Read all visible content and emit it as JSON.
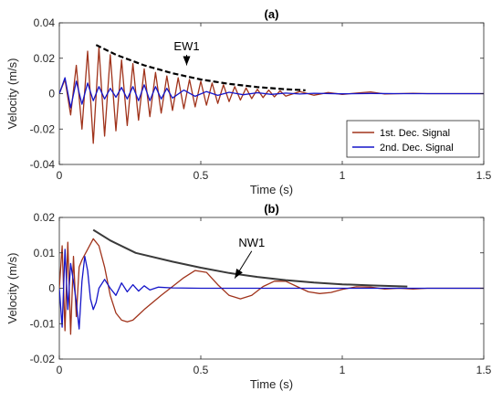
{
  "colors": {
    "series1": "#a0331b",
    "series2": "#1515c8",
    "envelope_a": "#000000",
    "envelope_b": "#3a3a3a",
    "axis": "#262626"
  },
  "chart_data": [
    {
      "type": "line",
      "title": "(a)",
      "xlabel": "Time (s)",
      "ylabel": "Velocity (m/s)",
      "xlim": [
        0,
        1.5
      ],
      "ylim": [
        -0.04,
        0.04
      ],
      "xticks": [
        0,
        0.5,
        1,
        1.5
      ],
      "xtick_labels": [
        "0",
        "0.5",
        "1",
        "1.5"
      ],
      "yticks": [
        -0.04,
        -0.02,
        0,
        0.02,
        0.04
      ],
      "ytick_labels": [
        "-0.04",
        "-0.02",
        "0",
        "0.02",
        "0.04"
      ],
      "legend_position": "bottom-right",
      "annotation": {
        "text": "EW1",
        "x": 0.45,
        "y": 0.016,
        "text_x": 0.45,
        "text_y": 0.0245
      },
      "series": [
        {
          "name": "1st. Dec. Signal",
          "style": "solid",
          "color": "#a0331b",
          "x": [
            0,
            0.02,
            0.04,
            0.06,
            0.08,
            0.1,
            0.12,
            0.14,
            0.16,
            0.18,
            0.2,
            0.22,
            0.24,
            0.26,
            0.28,
            0.3,
            0.32,
            0.34,
            0.36,
            0.38,
            0.4,
            0.42,
            0.44,
            0.46,
            0.48,
            0.5,
            0.52,
            0.54,
            0.56,
            0.58,
            0.6,
            0.62,
            0.64,
            0.66,
            0.68,
            0.7,
            0.72,
            0.74,
            0.76,
            0.78,
            0.8,
            0.85,
            0.9,
            0.95,
            1.0,
            1.05,
            1.1,
            1.15,
            1.2,
            1.25,
            1.3,
            1.35,
            1.4,
            1.45,
            1.5
          ],
          "y": [
            0,
            0.008,
            -0.012,
            0.016,
            -0.02,
            0.024,
            -0.028,
            0.026,
            -0.024,
            0.022,
            -0.021,
            0.019,
            -0.018,
            0.017,
            -0.015,
            0.014,
            -0.013,
            0.012,
            -0.011,
            0.01,
            -0.0095,
            0.009,
            -0.0085,
            0.008,
            -0.0075,
            0.007,
            -0.0065,
            0.006,
            -0.0055,
            0.005,
            -0.0045,
            0.004,
            -0.0036,
            0.0032,
            -0.0028,
            0.0025,
            -0.0022,
            0.002,
            -0.0018,
            0.0016,
            -0.0014,
            0.0012,
            -0.0009,
            0.0006,
            -0.0004,
            0.0003,
            0.001,
            -0.0002,
            0.0,
            0.0002,
            0.0,
            0.0,
            0.0,
            0.0,
            0.0
          ]
        },
        {
          "name": "2nd. Dec. Signal",
          "style": "solid",
          "color": "#1515c8",
          "x": [
            0,
            0.02,
            0.04,
            0.06,
            0.08,
            0.1,
            0.12,
            0.14,
            0.16,
            0.18,
            0.2,
            0.22,
            0.24,
            0.26,
            0.28,
            0.3,
            0.32,
            0.34,
            0.36,
            0.38,
            0.4,
            0.44,
            0.48,
            0.52,
            0.56,
            0.6,
            0.65,
            0.7,
            0.75,
            0.8,
            0.85,
            0.9,
            1.0,
            1.1,
            1.2,
            1.3,
            1.4,
            1.5
          ],
          "y": [
            0.0,
            0.009,
            -0.008,
            0.007,
            -0.006,
            0.006,
            -0.004,
            0.004,
            -0.003,
            0.003,
            -0.002,
            0.0035,
            -0.003,
            0.004,
            -0.004,
            0.005,
            -0.004,
            0.004,
            -0.003,
            0.003,
            -0.0025,
            0.002,
            -0.0015,
            0.0012,
            -0.001,
            0.0008,
            -0.0006,
            0.0005,
            -0.0004,
            0.0003,
            -0.0002,
            0.0002,
            -0.0001,
            0.0001,
            0.0,
            0.0,
            0.0,
            0.0
          ]
        },
        {
          "style": "dashed",
          "color": "#000000",
          "x": [
            0.13,
            0.2,
            0.3,
            0.4,
            0.5,
            0.6,
            0.7,
            0.8,
            0.87
          ],
          "y": [
            0.0275,
            0.022,
            0.016,
            0.0115,
            0.008,
            0.0055,
            0.0037,
            0.0025,
            0.0019
          ]
        }
      ]
    },
    {
      "type": "line",
      "title": "(b)",
      "xlabel": "Time (s)",
      "ylabel": "Velocity (m/s)",
      "xlim": [
        0,
        1.5
      ],
      "ylim": [
        -0.02,
        0.02
      ],
      "xticks": [
        0,
        0.5,
        1,
        1.5
      ],
      "xtick_labels": [
        "0",
        "0.5",
        "1",
        "1.5"
      ],
      "yticks": [
        -0.02,
        -0.01,
        0,
        0.01,
        0.02
      ],
      "ytick_labels": [
        "-0.02",
        "-0.01",
        "0",
        "0.01",
        "0.02"
      ],
      "annotation": {
        "text": "NW1",
        "x": 0.62,
        "y": 0.0028,
        "text_x": 0.68,
        "text_y": 0.0118
      },
      "series": [
        {
          "style": "solid",
          "color": "#a0331b",
          "x": [
            0,
            0.01,
            0.02,
            0.03,
            0.04,
            0.05,
            0.06,
            0.07,
            0.08,
            0.1,
            0.12,
            0.14,
            0.16,
            0.18,
            0.2,
            0.22,
            0.24,
            0.26,
            0.28,
            0.3,
            0.33,
            0.36,
            0.4,
            0.44,
            0.48,
            0.52,
            0.56,
            0.6,
            0.64,
            0.68,
            0.72,
            0.76,
            0.8,
            0.84,
            0.88,
            0.92,
            0.96,
            1.0,
            1.05,
            1.1,
            1.15,
            1.2,
            1.25,
            1.3,
            1.4,
            1.5
          ],
          "y": [
            0,
            0.012,
            -0.012,
            0.013,
            -0.013,
            0.009,
            -0.008,
            0.006,
            0.008,
            0.011,
            0.014,
            0.012,
            0.006,
            -0.002,
            -0.007,
            -0.009,
            -0.0095,
            -0.009,
            -0.0075,
            -0.006,
            -0.004,
            -0.002,
            0.0005,
            0.003,
            0.005,
            0.0045,
            0.001,
            -0.002,
            -0.003,
            -0.002,
            0.0005,
            0.002,
            0.002,
            0.0005,
            -0.001,
            -0.0015,
            -0.0012,
            -0.0003,
            0.0004,
            0.0003,
            -0.0002,
            0.0,
            -0.0002,
            0.0,
            0.0,
            0.0
          ]
        },
        {
          "style": "solid",
          "color": "#1515c8",
          "x": [
            0,
            0.01,
            0.02,
            0.03,
            0.04,
            0.05,
            0.06,
            0.07,
            0.08,
            0.09,
            0.1,
            0.11,
            0.12,
            0.13,
            0.14,
            0.16,
            0.18,
            0.2,
            0.22,
            0.24,
            0.26,
            0.28,
            0.3,
            0.32,
            0.35,
            0.4,
            0.5,
            0.6,
            0.8,
            1.0,
            1.2,
            1.5
          ],
          "y": [
            0,
            -0.011,
            0.011,
            -0.006,
            0.007,
            0.002,
            -0.004,
            -0.0115,
            0.002,
            0.009,
            0.005,
            -0.003,
            -0.006,
            -0.004,
            0.0,
            0.0025,
            0.0,
            -0.002,
            0.0015,
            -0.001,
            0.001,
            -0.0008,
            0.0007,
            -0.0005,
            0.0003,
            0.0001,
            0.0,
            0.0,
            0.0,
            0.0,
            0.0,
            0.0
          ]
        },
        {
          "style": "solid",
          "color": "#3a3a3a",
          "x": [
            0.12,
            0.18,
            0.27,
            0.4,
            0.5,
            0.6,
            0.7,
            0.8,
            0.9,
            1.0,
            1.1,
            1.23
          ],
          "y": [
            0.0165,
            0.0135,
            0.01,
            0.0075,
            0.0058,
            0.0043,
            0.0032,
            0.0023,
            0.0016,
            0.0011,
            0.0008,
            0.0005
          ]
        }
      ]
    }
  ]
}
